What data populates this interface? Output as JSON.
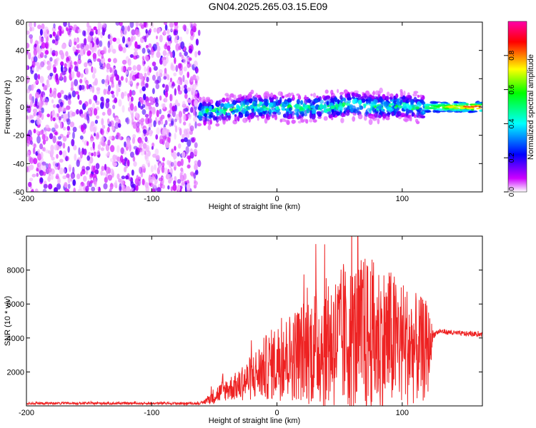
{
  "title": "GN04.2025.265.03.15.E09",
  "chart_data": [
    {
      "type": "heatmap",
      "xlabel": "Height of straight line (km)",
      "ylabel": "Frequency (Hz)",
      "xlim": [
        -200,
        164
      ],
      "ylim": [
        -60,
        60
      ],
      "x_ticks": [
        -200,
        -100,
        0,
        100
      ],
      "y_ticks": [
        60,
        40,
        20,
        0,
        -20,
        -40,
        -60
      ],
      "colorbar": {
        "label": "Normalized spectral amplitude",
        "range": [
          0,
          1
        ],
        "ticks": [
          "0.0",
          "0.2",
          "0.4",
          "0.6",
          "0.8"
        ],
        "colors": [
          "#ffffff",
          "#cc00ff",
          "#0000ff",
          "#00ffff",
          "#00ff00",
          "#ffff00",
          "#ff0000",
          "#ff00ff"
        ]
      },
      "regions": [
        {
          "x": [
            -200,
            -62
          ],
          "description_amplitude": "scattered low amplitude noise across all frequencies",
          "mean_amplitude": 0.05
        },
        {
          "x": [
            -62,
            118
          ],
          "freq_center": 0,
          "freq_halfwidth": 8,
          "mean_amplitude": 0.35
        },
        {
          "x": [
            118,
            164
          ],
          "freq_center": 0,
          "freq_halfwidth": 2,
          "mean_amplitude": 0.95
        }
      ],
      "band_center": {
        "x": [
          -62,
          -40,
          -20,
          0,
          20,
          40,
          60,
          80,
          100,
          120,
          140,
          164
        ],
        "y": [
          -4,
          -2,
          0,
          0,
          -1,
          0,
          2,
          0,
          1,
          -1,
          0,
          0
        ]
      }
    },
    {
      "type": "line",
      "xlabel": "Height of straight line (km)",
      "ylabel": "SNR (10 * v/v)",
      "xlim": [
        -200,
        164
      ],
      "ylim": [
        0,
        10000
      ],
      "x_ticks": [
        -200,
        -100,
        0,
        100
      ],
      "y_ticks": [
        2000,
        4000,
        6000,
        8000
      ],
      "color": "#ee2222",
      "series": [
        {
          "x": [
            -200,
            -150,
            -100,
            -60,
            -50,
            -40,
            -30,
            -20,
            -10,
            0,
            10,
            20,
            30,
            40,
            50,
            60,
            70,
            80,
            90,
            100,
            110,
            120,
            125,
            130,
            140,
            150,
            164
          ],
          "mean": [
            150,
            150,
            150,
            150,
            600,
            1000,
            1200,
            1700,
            2200,
            2600,
            2900,
            3200,
            3500,
            3700,
            3900,
            4000,
            4100,
            4000,
            3900,
            3700,
            3400,
            3200,
            4200,
            4400,
            4300,
            4250,
            4200
          ],
          "spread": [
            70,
            70,
            70,
            70,
            500,
            700,
            900,
            1400,
            1900,
            2300,
            2600,
            3000,
            3500,
            3900,
            4200,
            4500,
            4800,
            4600,
            4200,
            3800,
            3300,
            3000,
            200,
            150,
            150,
            150,
            150
          ]
        }
      ]
    }
  ]
}
